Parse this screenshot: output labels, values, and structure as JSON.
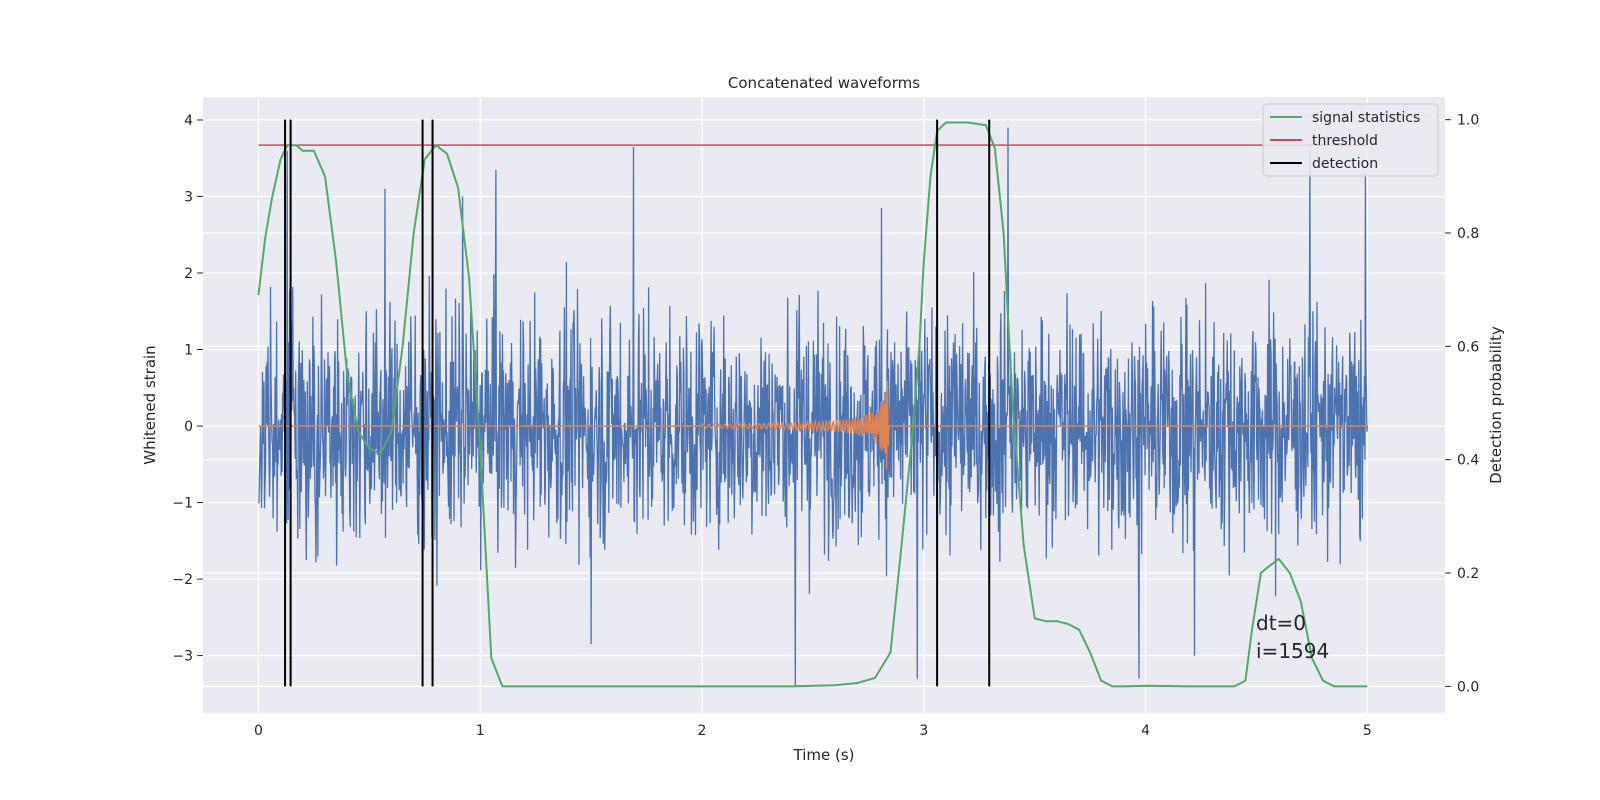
{
  "chart_data": {
    "type": "line",
    "title": "Concatenated waveforms",
    "xlabel": "Time (s)",
    "ylabel_left": "Whitened strain",
    "ylabel_right": "Detection probability",
    "xlim": [
      -0.25,
      5.35
    ],
    "ylim_left": [
      -3.75,
      4.3
    ],
    "ylim_right": [
      -0.047,
      1.04
    ],
    "xticks": [
      0,
      1,
      2,
      3,
      4,
      5
    ],
    "yticks_left": [
      -3,
      -2,
      -1,
      0,
      1,
      2,
      3,
      4
    ],
    "yticks_right": [
      0.0,
      0.2,
      0.4,
      0.6,
      0.8,
      1.0
    ],
    "grid": true,
    "legend_position": "top-right",
    "colors": {
      "strain": "#4c72b0",
      "waveform": "#dd8452",
      "signal_statistics": "#55a868",
      "threshold": "#c44e52",
      "detection": "#000000",
      "background": "#eaeaf2"
    },
    "series": [
      {
        "name": "strain",
        "axis": "left",
        "description": "whitened strain noise, approx. N(0,1) over t in [0,5]",
        "x_range": [
          0,
          5
        ],
        "spikes": [
          [
            0.13,
            3.6
          ],
          [
            0.57,
            3.1
          ],
          [
            0.92,
            3.0
          ],
          [
            1.07,
            3.35
          ],
          [
            1.5,
            -2.85
          ],
          [
            1.69,
            3.65
          ],
          [
            2.42,
            -3.4
          ],
          [
            2.81,
            2.85
          ],
          [
            2.97,
            -3.3
          ],
          [
            3.38,
            3.9
          ],
          [
            3.97,
            -3.3
          ],
          [
            4.22,
            -3.0
          ],
          [
            4.74,
            3.6
          ],
          [
            4.99,
            3.3
          ]
        ]
      },
      {
        "name": "waveform",
        "axis": "left",
        "description": "injected chirp, zero except 2.0-2.84 s, amplitude grows to approx. 0.65",
        "x_range": [
          0,
          5
        ],
        "chirp": {
          "start": 2.0,
          "end": 2.84,
          "peak_amplitude": 0.65
        }
      },
      {
        "name": "signal statistics",
        "axis": "right",
        "x": [
          0.0,
          0.03,
          0.06,
          0.1,
          0.13,
          0.17,
          0.2,
          0.25,
          0.3,
          0.35,
          0.4,
          0.45,
          0.5,
          0.55,
          0.6,
          0.65,
          0.7,
          0.75,
          0.8,
          0.85,
          0.9,
          0.95,
          1.0,
          1.05,
          1.1,
          1.5,
          2.0,
          2.4,
          2.6,
          2.7,
          2.78,
          2.85,
          2.9,
          2.95,
          2.98,
          3.0,
          3.03,
          3.06,
          3.1,
          3.2,
          3.28,
          3.32,
          3.36,
          3.4,
          3.45,
          3.5,
          3.55,
          3.6,
          3.65,
          3.7,
          3.75,
          3.8,
          3.85,
          3.9,
          4.0,
          4.2,
          4.4,
          4.45,
          4.48,
          4.52,
          4.55,
          4.6,
          4.65,
          4.7,
          4.75,
          4.8,
          4.85,
          5.0
        ],
        "values": [
          0.69,
          0.79,
          0.86,
          0.93,
          0.955,
          0.955,
          0.945,
          0.945,
          0.9,
          0.75,
          0.55,
          0.45,
          0.42,
          0.41,
          0.45,
          0.6,
          0.8,
          0.93,
          0.955,
          0.94,
          0.88,
          0.72,
          0.42,
          0.05,
          0.0,
          0.0,
          0.0,
          0.0,
          0.002,
          0.006,
          0.015,
          0.06,
          0.25,
          0.45,
          0.6,
          0.75,
          0.9,
          0.98,
          0.995,
          0.995,
          0.99,
          0.95,
          0.8,
          0.5,
          0.25,
          0.12,
          0.115,
          0.115,
          0.11,
          0.1,
          0.06,
          0.01,
          0.0,
          0.0,
          0.001,
          0.0,
          0.0,
          0.01,
          0.1,
          0.2,
          0.21,
          0.225,
          0.2,
          0.15,
          0.05,
          0.01,
          0.0,
          0.0
        ]
      },
      {
        "name": "threshold",
        "axis": "right",
        "x": [
          0,
          5
        ],
        "values": [
          0.955,
          0.955
        ]
      },
      {
        "name": "detection",
        "axis": "right",
        "type": "vlines",
        "x": [
          0.12,
          0.145,
          0.74,
          0.785,
          3.06,
          3.295
        ],
        "ymin": 0.0,
        "ymax": 1.0
      }
    ],
    "legend": [
      "signal statistics",
      "threshold",
      "detection"
    ],
    "annotations": [
      "dt=0",
      "i=1594"
    ]
  }
}
